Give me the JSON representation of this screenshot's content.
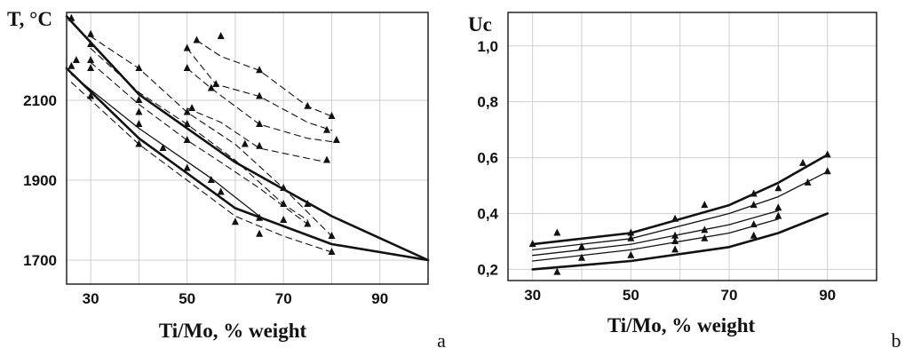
{
  "panel_labels": [
    "a",
    "b"
  ],
  "chart_data": [
    {
      "type": "line",
      "panel": "a",
      "ylabel": "T, °C",
      "xlabel": "Ti/Mo, % weight",
      "xlim": [
        25,
        100
      ],
      "ylim": [
        1640,
        2320
      ],
      "xticks": [
        30,
        50,
        70,
        90
      ],
      "yticks": [
        1700,
        1900,
        2100
      ],
      "ytick_labels": [
        "1700",
        "1900",
        "2100"
      ],
      "grid": true,
      "series": [
        {
          "style": "solid-thick",
          "x": [
            25,
            40,
            60,
            80,
            100
          ],
          "y": [
            2310,
            2115,
            1945,
            1810,
            1700
          ]
        },
        {
          "style": "solid-thick",
          "x": [
            25,
            40,
            60,
            80,
            100
          ],
          "y": [
            2180,
            2005,
            1830,
            1740,
            1700
          ]
        },
        {
          "style": "solid",
          "x": [
            26,
            40,
            55,
            65
          ],
          "y": [
            2165,
            2030,
            1905,
            1810
          ]
        },
        {
          "style": "dashed",
          "x": [
            30,
            40,
            50,
            60,
            70,
            80
          ],
          "y": [
            2260,
            2180,
            2070,
            1990,
            1880,
            1760
          ]
        },
        {
          "style": "dashed",
          "x": [
            30,
            40,
            50,
            60,
            70,
            75
          ],
          "y": [
            2230,
            2120,
            2040,
            1950,
            1840,
            1800
          ]
        },
        {
          "style": "dashed",
          "x": [
            30,
            40,
            50,
            57,
            65,
            75
          ],
          "y": [
            2195,
            2090,
            2000,
            1945,
            1880,
            1790
          ]
        },
        {
          "style": "dashed",
          "x": [
            26,
            40,
            50,
            60,
            70,
            80
          ],
          "y": [
            2145,
            1990,
            1900,
            1810,
            1760,
            1720
          ]
        },
        {
          "style": "dashed",
          "x": [
            52,
            57,
            65,
            75,
            80
          ],
          "y": [
            2250,
            2210,
            2175,
            2085,
            2060
          ]
        },
        {
          "style": "dashed",
          "x": [
            50,
            56,
            65,
            75,
            80
          ],
          "y": [
            2230,
            2140,
            2110,
            2045,
            2025
          ]
        },
        {
          "style": "dashed",
          "x": [
            50,
            55,
            65,
            75,
            81
          ],
          "y": [
            2180,
            2130,
            2040,
            2005,
            1995
          ]
        },
        {
          "style": "dashed",
          "x": [
            50,
            57,
            65,
            79
          ],
          "y": [
            2080,
            2045,
            1980,
            1945
          ]
        }
      ],
      "points": {
        "x": [
          26,
          27,
          26,
          30,
          30,
          30,
          30,
          30,
          40,
          40,
          40,
          40,
          40,
          45,
          50,
          50,
          50,
          50,
          55,
          57,
          60,
          65,
          65,
          70,
          70,
          70,
          75,
          75,
          80,
          80,
          52,
          57,
          65,
          75,
          80,
          50,
          56,
          65,
          79,
          50,
          55,
          65,
          81,
          51,
          65,
          79,
          62
        ],
        "y": [
          2305,
          2200,
          2185,
          2265,
          2240,
          2200,
          2180,
          2110,
          2180,
          2100,
          2070,
          2040,
          1990,
          1980,
          2070,
          2040,
          2000,
          1930,
          1900,
          1870,
          1795,
          1805,
          1765,
          1880,
          1840,
          1800,
          1840,
          1790,
          1760,
          1720,
          2250,
          2260,
          2175,
          2085,
          2060,
          2230,
          2140,
          2110,
          2025,
          2180,
          2130,
          2040,
          2000,
          2080,
          1985,
          1950,
          1990
        ]
      }
    },
    {
      "type": "line",
      "panel": "b",
      "ylabel": "Uc",
      "xlabel": "Ti/Mo, % weight",
      "xlim": [
        25,
        100
      ],
      "ylim": [
        0.16,
        1.12
      ],
      "xticks": [
        30,
        50,
        70,
        90
      ],
      "yticks": [
        0.2,
        0.4,
        0.6,
        0.8,
        1.0
      ],
      "ytick_labels": [
        "0,2",
        "0,4",
        "0,6",
        "0,8",
        "1,0"
      ],
      "grid": true,
      "series": [
        {
          "style": "solid-thick",
          "x": [
            30,
            50,
            70,
            80,
            90
          ],
          "y": [
            0.29,
            0.33,
            0.43,
            0.51,
            0.61
          ]
        },
        {
          "style": "solid",
          "x": [
            30,
            50,
            70,
            80,
            90
          ],
          "y": [
            0.27,
            0.31,
            0.4,
            0.46,
            0.55
          ]
        },
        {
          "style": "solid",
          "x": [
            30,
            50,
            70,
            80
          ],
          "y": [
            0.25,
            0.29,
            0.36,
            0.41
          ]
        },
        {
          "style": "solid",
          "x": [
            30,
            50,
            70,
            80
          ],
          "y": [
            0.23,
            0.27,
            0.33,
            0.38
          ]
        },
        {
          "style": "solid-thick",
          "x": [
            30,
            50,
            70,
            80,
            90
          ],
          "y": [
            0.2,
            0.23,
            0.28,
            0.33,
            0.4
          ]
        }
      ],
      "points": {
        "x": [
          30,
          35,
          35,
          40,
          40,
          50,
          50,
          50,
          59,
          59,
          59,
          59,
          65,
          65,
          65,
          75,
          75,
          75,
          75,
          80,
          80,
          80,
          85,
          86,
          90,
          90
        ],
        "y": [
          0.29,
          0.33,
          0.19,
          0.28,
          0.24,
          0.33,
          0.31,
          0.25,
          0.38,
          0.32,
          0.3,
          0.27,
          0.43,
          0.34,
          0.31,
          0.47,
          0.43,
          0.36,
          0.32,
          0.49,
          0.42,
          0.39,
          0.58,
          0.51,
          0.61,
          0.55
        ]
      }
    }
  ]
}
